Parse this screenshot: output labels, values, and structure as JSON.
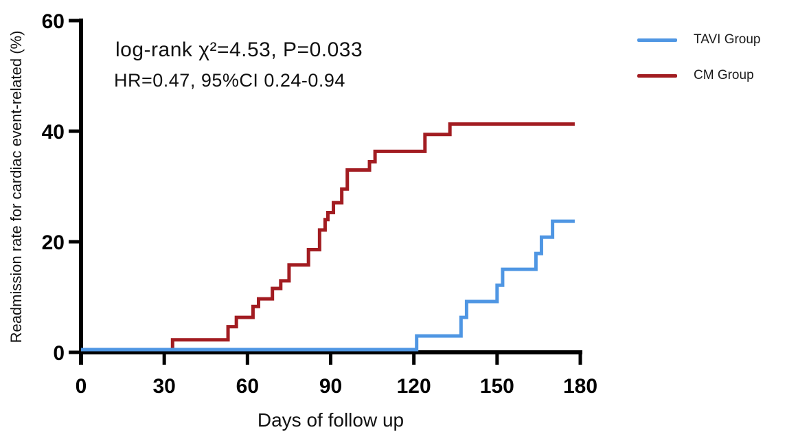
{
  "page": {
    "background": "#ffffff"
  },
  "annotation": {
    "line1": "log-rank χ²=4.53, P=0.033",
    "line2": "HR=0.47, 95%CI 0.24-0.94"
  },
  "legend": {
    "items": [
      {
        "label": "TAVI Group",
        "color": "#4F96E3"
      },
      {
        "label": "CM Group",
        "color": "#A21C21"
      }
    ]
  },
  "chart_data": {
    "type": "line",
    "subtype": "kaplan-meier-cumulative-incidence-step",
    "title": "",
    "xlabel": "Days of follow up",
    "ylabel": "Readmission rate for cardiac event-related (%)",
    "xlim": [
      0,
      180
    ],
    "ylim": [
      0,
      60
    ],
    "x_ticks": [
      0,
      30,
      60,
      90,
      120,
      150,
      180
    ],
    "y_ticks": [
      0,
      20,
      40,
      60
    ],
    "grid": false,
    "legend_position": "outside-top-right",
    "axis_color": "#000000",
    "annotations": [
      "log-rank χ²=4.53, P=0.033",
      "HR=0.47, 95%CI 0.24-0.94"
    ],
    "series": [
      {
        "name": "TAVI Group",
        "color": "#4F96E3",
        "step_points": [
          [
            0,
            0
          ],
          [
            121,
            2.5
          ],
          [
            137,
            5.9
          ],
          [
            139,
            8.8
          ],
          [
            150,
            11.8
          ],
          [
            152,
            14.7
          ],
          [
            164,
            17.6
          ],
          [
            166,
            20.6
          ],
          [
            170,
            23.5
          ],
          [
            178,
            23.5
          ]
        ]
      },
      {
        "name": "CM Group",
        "color": "#A21C21",
        "step_points": [
          [
            0,
            0
          ],
          [
            33,
            1.8
          ],
          [
            53,
            4.2
          ],
          [
            56,
            5.9
          ],
          [
            62,
            7.9
          ],
          [
            64,
            9.3
          ],
          [
            69,
            11.2
          ],
          [
            72,
            12.6
          ],
          [
            75,
            15.5
          ],
          [
            82,
            18.3
          ],
          [
            86,
            21.9
          ],
          [
            88,
            23.8
          ],
          [
            89,
            25.1
          ],
          [
            91,
            26.9
          ],
          [
            94,
            29.4
          ],
          [
            96,
            32.9
          ],
          [
            104,
            34.4
          ],
          [
            106,
            36.3
          ],
          [
            124,
            39.4
          ],
          [
            133,
            41.3
          ],
          [
            178,
            41.3
          ]
        ]
      }
    ]
  }
}
